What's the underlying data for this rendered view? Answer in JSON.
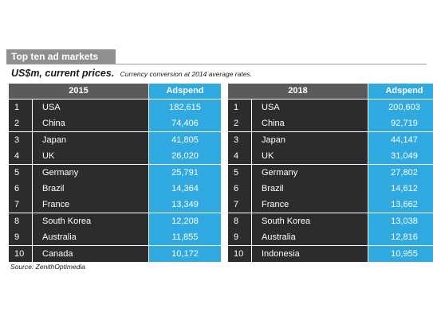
{
  "title": "Top ten ad markets",
  "subtitle_main": "US$m, current prices.",
  "subtitle_note": "Currency conversion at 2014 average rates.",
  "source": "Source: ZenithOptimedia",
  "colors": {
    "dark_cell": "#2c2c2c",
    "header_dark": "#5a5a5a",
    "accent_blue": "#2fa9e0",
    "banner_grey": "#8f8f8f"
  },
  "tables": [
    {
      "year": "2015",
      "value_header": "Adspend",
      "rows": [
        {
          "rank": "1",
          "country": "USA",
          "value": "182,615"
        },
        {
          "rank": "2",
          "country": "China",
          "value": "74,406"
        },
        {
          "rank": "3",
          "country": "Japan",
          "value": "41,805"
        },
        {
          "rank": "4",
          "country": "UK",
          "value": "26,020"
        },
        {
          "rank": "5",
          "country": "Germany",
          "value": "25,791"
        },
        {
          "rank": "6",
          "country": "Brazil",
          "value": "14,364"
        },
        {
          "rank": "7",
          "country": "France",
          "value": "13,349"
        },
        {
          "rank": "8",
          "country": "South Korea",
          "value": "12,208"
        },
        {
          "rank": "9",
          "country": "Australia",
          "value": "11,855"
        },
        {
          "rank": "10",
          "country": "Canada",
          "value": "10,172"
        }
      ]
    },
    {
      "year": "2018",
      "value_header": "Adspend",
      "rows": [
        {
          "rank": "1",
          "country": "USA",
          "value": "200,603"
        },
        {
          "rank": "2",
          "country": "China",
          "value": "92,719"
        },
        {
          "rank": "3",
          "country": "Japan",
          "value": "44,147"
        },
        {
          "rank": "4",
          "country": "UK",
          "value": "31,049"
        },
        {
          "rank": "5",
          "country": "Germany",
          "value": "27,802"
        },
        {
          "rank": "6",
          "country": "Brazil",
          "value": "14,612"
        },
        {
          "rank": "7",
          "country": "France",
          "value": "13,662"
        },
        {
          "rank": "8",
          "country": "South Korea",
          "value": "13,038"
        },
        {
          "rank": "9",
          "country": "Australia",
          "value": "12,816"
        },
        {
          "rank": "10",
          "country": "Indonesia",
          "value": "10,955"
        }
      ]
    }
  ]
}
